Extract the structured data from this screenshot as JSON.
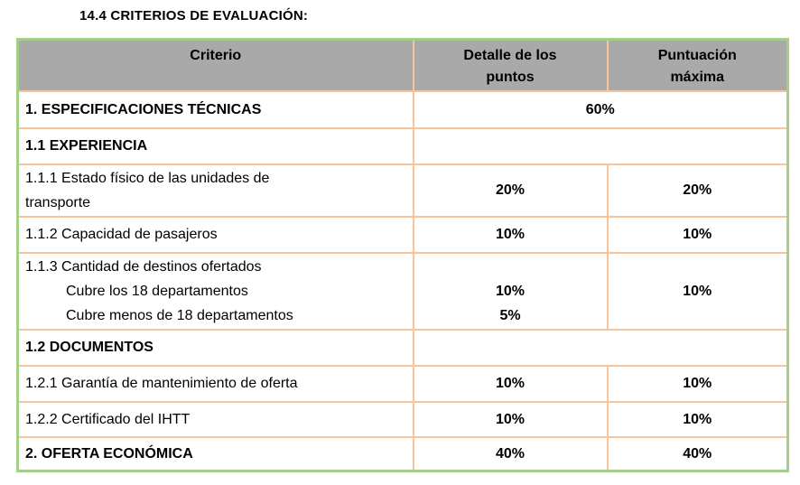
{
  "page": {
    "title": "14.4 CRITERIOS DE EVALUACIÓN:"
  },
  "colors": {
    "outer_border": "#a5ce8b",
    "inner_border": "#f8c49c",
    "header_bg": "#a9a9a9",
    "text": "#000000",
    "background": "#ffffff"
  },
  "table": {
    "headers": [
      {
        "id": "criterio",
        "lines": [
          "Criterio"
        ]
      },
      {
        "id": "detalle",
        "lines": [
          "Detalle de los",
          "puntos"
        ]
      },
      {
        "id": "puntuacion",
        "lines": [
          "Puntuación",
          "máxima"
        ]
      }
    ],
    "rows": [
      {
        "criterio": [
          {
            "text": "1. ESPECIFICACIONES TÉCNICAS",
            "indent": false
          }
        ],
        "bold": true,
        "merged": true,
        "detalle": [
          "60%"
        ],
        "puntuacion": []
      },
      {
        "criterio": [
          {
            "text": "1.1 EXPERIENCIA",
            "indent": false
          }
        ],
        "bold": true,
        "merged": true,
        "detalle": [],
        "puntuacion": []
      },
      {
        "criterio": [
          {
            "text": "1.1.1 Estado físico de las unidades de",
            "indent": false
          },
          {
            "text": "transporte",
            "indent": false
          }
        ],
        "bold": false,
        "merged": false,
        "detalle": [
          "20%"
        ],
        "puntuacion": [
          "20%"
        ]
      },
      {
        "criterio": [
          {
            "text": "1.1.2 Capacidad de pasajeros",
            "indent": false
          }
        ],
        "bold": false,
        "merged": false,
        "detalle": [
          "10%"
        ],
        "puntuacion": [
          "10%"
        ]
      },
      {
        "criterio": [
          {
            "text": "1.1.3 Cantidad de destinos ofertados",
            "indent": false
          },
          {
            "text": "Cubre los 18 departamentos",
            "indent": true
          },
          {
            "text": "Cubre menos de 18 departamentos",
            "indent": true
          }
        ],
        "bold": false,
        "merged": false,
        "detalle": [
          "",
          "10%",
          "5%"
        ],
        "puntuacion": [
          "10%"
        ]
      },
      {
        "criterio": [
          {
            "text": "1.2 DOCUMENTOS",
            "indent": false
          }
        ],
        "bold": true,
        "merged": true,
        "detalle": [],
        "puntuacion": []
      },
      {
        "criterio": [
          {
            "text": "1.2.1 Garantía de mantenimiento de oferta",
            "indent": false
          }
        ],
        "bold": false,
        "merged": false,
        "detalle": [
          "10%"
        ],
        "puntuacion": [
          "10%"
        ]
      },
      {
        "criterio": [
          {
            "text": "1.2.2 Certificado del IHTT",
            "indent": false
          }
        ],
        "bold": false,
        "merged": false,
        "detalle": [
          "10%"
        ],
        "puntuacion": [
          "10%"
        ]
      },
      {
        "criterio": [
          {
            "text": "2. OFERTA ECONÓMICA",
            "indent": false
          }
        ],
        "bold": true,
        "merged": false,
        "detalle": [
          "40%"
        ],
        "puntuacion": [
          "40%"
        ]
      }
    ]
  }
}
